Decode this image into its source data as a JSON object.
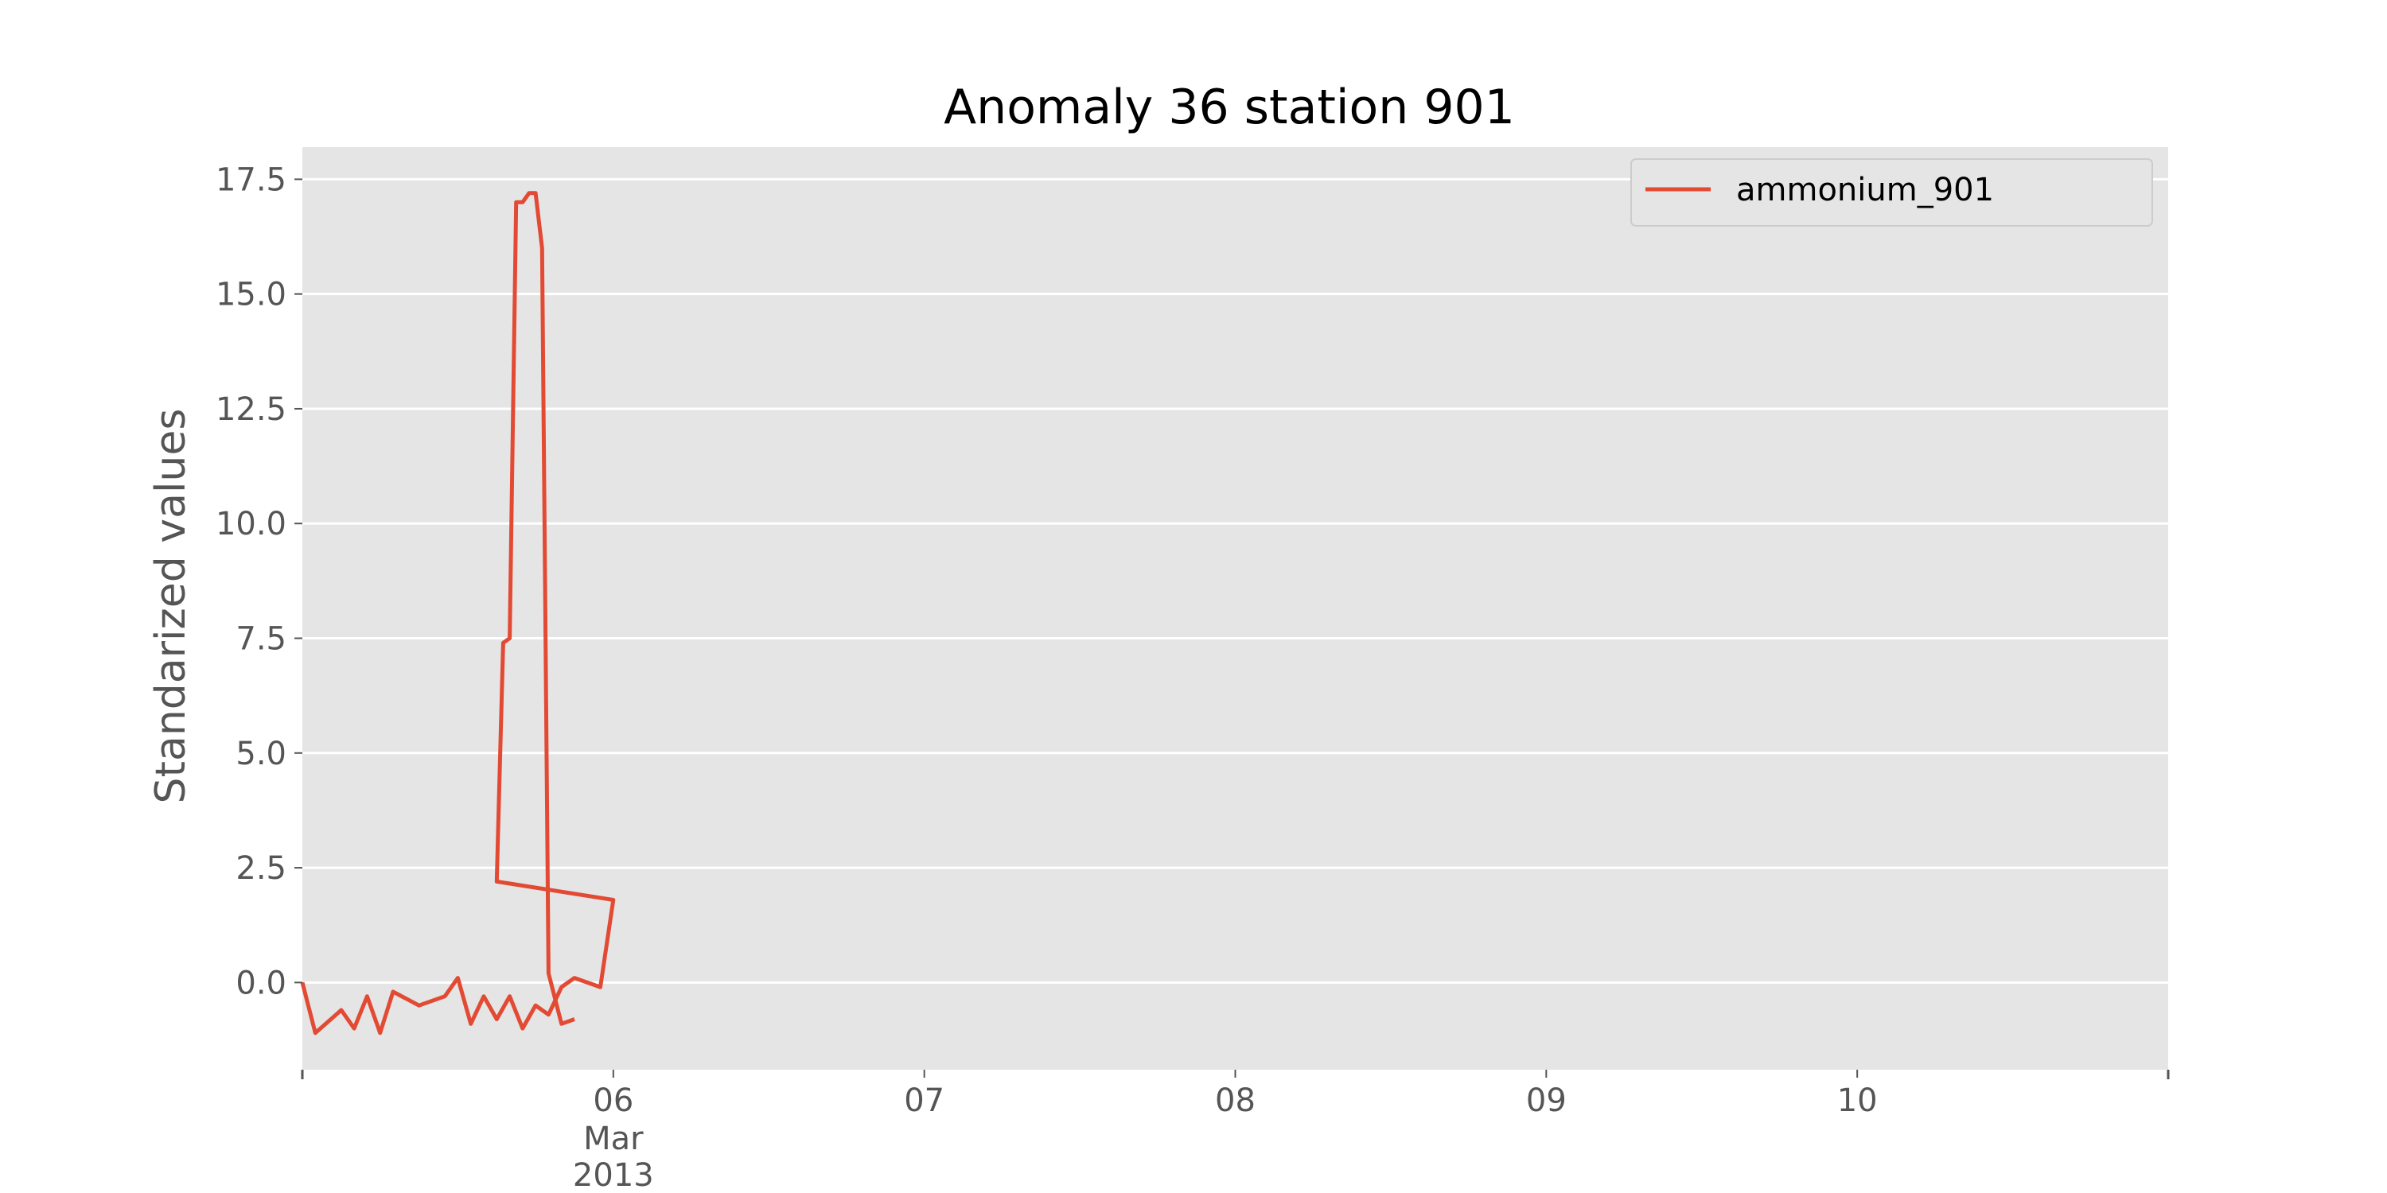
{
  "chart_data": {
    "type": "line",
    "title": "Anomaly 36 station 901",
    "xlabel": "",
    "ylabel": "Standarized values",
    "x_axis": {
      "type": "date",
      "start": "2013-03-05T00:00",
      "end": "2013-03-11T00:00",
      "major_ticks": [
        {
          "date": "2013-03-06",
          "label": "06",
          "sublabel_1": "Mar",
          "sublabel_2": "2013"
        },
        {
          "date": "2013-03-07",
          "label": "07"
        },
        {
          "date": "2013-03-08",
          "label": "08"
        },
        {
          "date": "2013-03-09",
          "label": "09"
        },
        {
          "date": "2013-03-10",
          "label": "10"
        }
      ]
    },
    "y_axis": {
      "ylim": [
        -1.9,
        18.2
      ],
      "ticks": [
        0.0,
        2.5,
        5.0,
        7.5,
        10.0,
        12.5,
        15.0,
        17.5
      ],
      "tick_labels": [
        "0.0",
        "2.5",
        "5.0",
        "7.5",
        "10.0",
        "12.5",
        "15.0",
        "17.5"
      ]
    },
    "grid": true,
    "legend_position": "top-right",
    "background": "#e5e5e5",
    "series": [
      {
        "name": "ammonium_901",
        "color": "#e24a33",
        "points": [
          [
            "2013-03-05T00:00",
            0.0
          ],
          [
            "2013-03-05T01:00",
            -1.1
          ],
          [
            "2013-03-05T03:00",
            -0.6
          ],
          [
            "2013-03-05T04:00",
            -1.0
          ],
          [
            "2013-03-05T05:00",
            -0.3
          ],
          [
            "2013-03-05T06:00",
            -1.1
          ],
          [
            "2013-03-05T07:00",
            -0.2
          ],
          [
            "2013-03-05T09:00",
            -0.5
          ],
          [
            "2013-03-05T11:00",
            -0.3
          ],
          [
            "2013-03-05T12:00",
            0.1
          ],
          [
            "2013-03-05T13:00",
            -0.9
          ],
          [
            "2013-03-05T14:00",
            -0.3
          ],
          [
            "2013-03-05T15:00",
            -0.8
          ],
          [
            "2013-03-05T16:00",
            -0.3
          ],
          [
            "2013-03-05T17:00",
            -1.0
          ],
          [
            "2013-03-05T18:00",
            -0.5
          ],
          [
            "2013-03-05T19:00",
            -0.7
          ],
          [
            "2013-03-05T20:00",
            -0.1
          ],
          [
            "2013-03-05T21:00",
            0.1
          ],
          [
            "2013-03-05T23:00",
            -0.1
          ],
          [
            "2013-03-06T00:00",
            1.8
          ],
          [
            "2013-03-05T15:00",
            2.2
          ],
          [
            "2013-03-05T15:30",
            7.4
          ],
          [
            "2013-03-05T16:00",
            7.5
          ],
          [
            "2013-03-05T16:30",
            17.0
          ],
          [
            "2013-03-05T17:00",
            17.0
          ],
          [
            "2013-03-05T17:30",
            17.2
          ],
          [
            "2013-03-05T18:00",
            17.2
          ],
          [
            "2013-03-05T18:30",
            16.0
          ],
          [
            "2013-03-05T19:00",
            0.2
          ],
          [
            "2013-03-05T20:00",
            -0.9
          ],
          [
            "2013-03-05T21:00",
            -0.8
          ]
        ]
      }
    ]
  }
}
